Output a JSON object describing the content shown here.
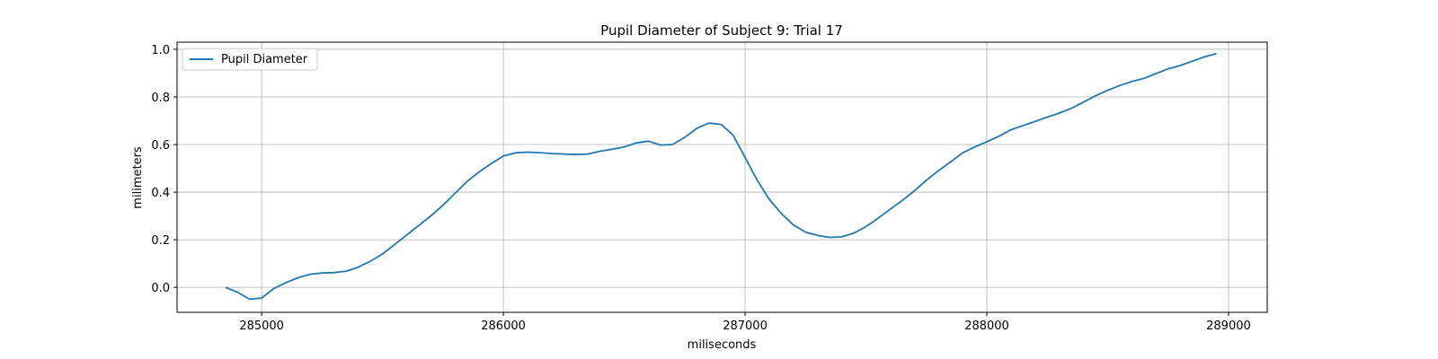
{
  "chart_data": {
    "type": "line",
    "title": "Pupil Diameter of Subject 9: Trial 17",
    "xlabel": "miliseconds",
    "ylabel": "milimeters",
    "xlim": [
      284650,
      289160
    ],
    "ylim": [
      -0.105,
      1.03
    ],
    "xticks": [
      285000,
      286000,
      287000,
      288000,
      289000
    ],
    "xtick_labels": [
      "285000",
      "286000",
      "287000",
      "288000",
      "289000"
    ],
    "yticks": [
      0.0,
      0.2,
      0.4,
      0.6,
      0.8,
      1.0
    ],
    "ytick_labels": [
      "0.0",
      "0.2",
      "0.4",
      "0.6",
      "0.8",
      "1.0"
    ],
    "grid": true,
    "legend_position": "upper left",
    "series": [
      {
        "name": "Pupil Diameter",
        "color": "#1f77b4",
        "x": [
          284850,
          284900,
          284950,
          285000,
          285050,
          285100,
          285150,
          285200,
          285250,
          285300,
          285350,
          285400,
          285450,
          285500,
          285550,
          285600,
          285650,
          285700,
          285750,
          285800,
          285850,
          285900,
          285950,
          286000,
          286050,
          286100,
          286150,
          286200,
          286250,
          286300,
          286350,
          286400,
          286450,
          286500,
          286550,
          286600,
          286650,
          286700,
          286750,
          286800,
          286850,
          286900,
          286950,
          287000,
          287050,
          287100,
          287150,
          287200,
          287250,
          287300,
          287350,
          287400,
          287450,
          287500,
          287550,
          287600,
          287650,
          287700,
          287750,
          287800,
          287850,
          287900,
          287950,
          288000,
          288050,
          288100,
          288150,
          288200,
          288250,
          288300,
          288350,
          288400,
          288450,
          288500,
          288550,
          288600,
          288650,
          288700,
          288750,
          288800,
          288850,
          288900,
          288950
        ],
        "y": [
          0.0,
          -0.02,
          -0.05,
          -0.045,
          -0.005,
          0.02,
          0.04,
          0.055,
          0.06,
          0.062,
          0.068,
          0.085,
          0.11,
          0.14,
          0.18,
          0.22,
          0.26,
          0.3,
          0.345,
          0.395,
          0.445,
          0.485,
          0.52,
          0.552,
          0.565,
          0.568,
          0.566,
          0.562,
          0.56,
          0.558,
          0.56,
          0.572,
          0.58,
          0.59,
          0.607,
          0.614,
          0.598,
          0.6,
          0.63,
          0.668,
          0.69,
          0.685,
          0.64,
          0.545,
          0.45,
          0.37,
          0.31,
          0.262,
          0.232,
          0.218,
          0.21,
          0.212,
          0.228,
          0.255,
          0.29,
          0.328,
          0.365,
          0.405,
          0.45,
          0.49,
          0.527,
          0.565,
          0.59,
          0.612,
          0.635,
          0.662,
          0.68,
          0.697,
          0.715,
          0.732,
          0.752,
          0.778,
          0.805,
          0.828,
          0.848,
          0.865,
          0.878,
          0.898,
          0.918,
          0.932,
          0.95,
          0.968,
          0.982
        ]
      }
    ]
  }
}
